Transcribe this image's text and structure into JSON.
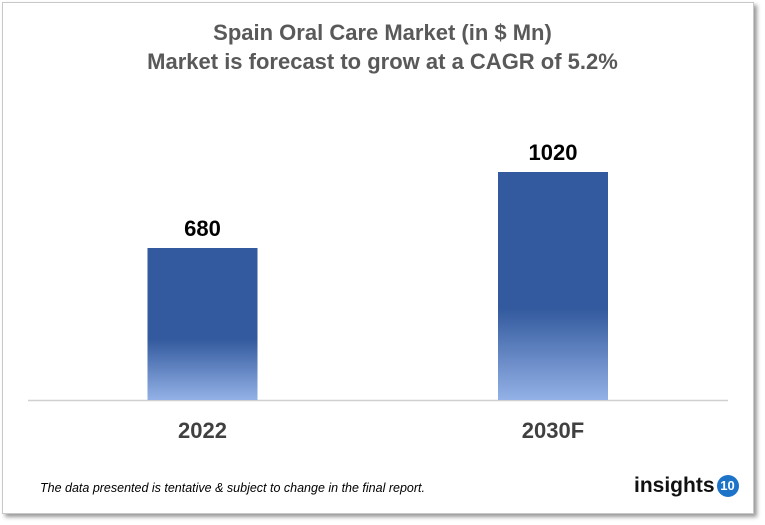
{
  "chart_data": {
    "type": "bar",
    "title": "Spain Oral Care Market (in $ Mn)",
    "subtitle": "Market is forecast to grow at a CAGR of 5.2%",
    "categories": [
      "2022",
      "2030F"
    ],
    "values": [
      680,
      1020
    ],
    "data_labels": [
      "680",
      "1020"
    ],
    "xlabel": "",
    "ylabel": "",
    "ylim": [
      0,
      1020
    ],
    "grid": false,
    "colors": {
      "bar_top": "#335A9E",
      "bar_bottom": "#93B1E6"
    }
  },
  "footnote": "The data presented is tentative & subject to change in the final report.",
  "logo": {
    "text": "insights",
    "badge": "10"
  }
}
